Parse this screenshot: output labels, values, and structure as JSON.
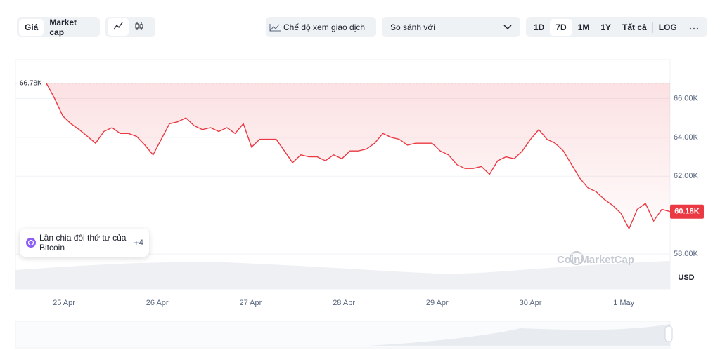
{
  "toolbar": {
    "tabs": [
      "Giá",
      "Market cap"
    ],
    "trade_view": "Chế độ xem giao dịch",
    "compare": "So sánh với",
    "ranges": [
      "1D",
      "7D",
      "1M",
      "1Y",
      "Tất cả"
    ],
    "log": "LOG"
  },
  "notice": {
    "text": "Lần chia đôi thứ tư của Bitcoin",
    "badge": "+4"
  },
  "watermark": "CoinMarketCap",
  "chart_data": {
    "type": "line",
    "color": "#ea3943",
    "values": [
      66780,
      66000,
      65100,
      64700,
      64400,
      64050,
      63700,
      64300,
      64500,
      64200,
      64200,
      64050,
      63600,
      63100,
      63900,
      64700,
      64800,
      65000,
      64600,
      64400,
      64500,
      64300,
      64500,
      64200,
      64700,
      63500,
      63900,
      63900,
      63900,
      63300,
      62700,
      63100,
      63000,
      63000,
      62800,
      63100,
      62900,
      63300,
      63300,
      63400,
      63700,
      64200,
      64000,
      63900,
      63600,
      63700,
      63700,
      63700,
      63300,
      63100,
      62600,
      62400,
      62400,
      62500,
      62100,
      62800,
      63000,
      62900,
      63300,
      63900,
      64400,
      63900,
      63700,
      63300,
      62600,
      61900,
      61400,
      61200,
      60800,
      60500,
      60100,
      59300,
      60300,
      60600,
      59700,
      60300,
      60180
    ],
    "start_label": "66.78K",
    "end_label": "60.18K",
    "xtick_labels": [
      "25 Apr",
      "26 Apr",
      "27 Apr",
      "28 Apr",
      "29 Apr",
      "30 Apr",
      "1 May"
    ],
    "ylim": [
      56200,
      68000
    ],
    "yticks": [
      {
        "value": 58000,
        "label": "58.00K"
      },
      {
        "value": 62000,
        "label": "62.00K"
      },
      {
        "value": 64000,
        "label": "64.00K"
      },
      {
        "value": 66000,
        "label": "66.00K"
      }
    ],
    "y_unit": "USD",
    "grid": true
  }
}
